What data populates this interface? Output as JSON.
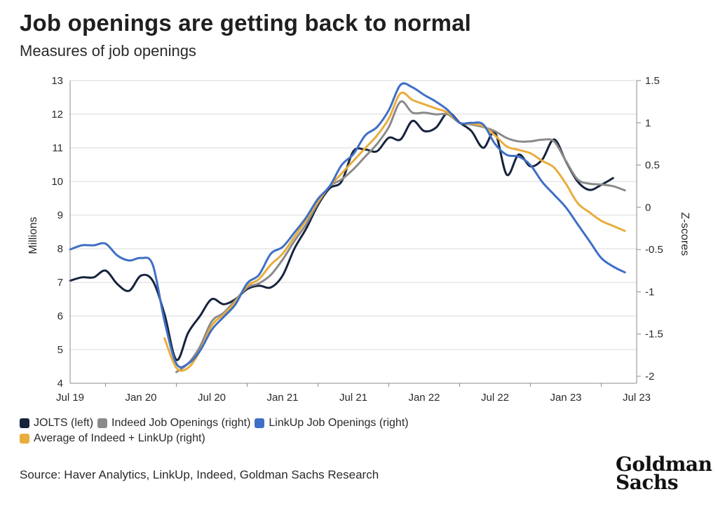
{
  "title": "Job openings are getting back to normal",
  "subtitle": "Measures of job openings",
  "source": "Source: Haver Analytics, LinkUp, Indeed, Goldman Sachs Research",
  "logo": {
    "line1": "Goldman",
    "line2": "Sachs"
  },
  "chart_data": {
    "type": "line",
    "title": "Job openings are getting back to normal",
    "subtitle": "Measures of job openings",
    "x_ticks": [
      "Jul 19",
      "Jan 20",
      "Jul 20",
      "Jan 21",
      "Jul 21",
      "Jan 22",
      "Jul 22",
      "Jan 23",
      "Jul 23"
    ],
    "ylabel_left": "Millions",
    "ylabel_right": "Z-scores",
    "ylim_left": [
      4,
      13
    ],
    "ylim_right": [
      -2.083,
      1.5
    ],
    "y_ticks_left": [
      "4",
      "5",
      "6",
      "7",
      "8",
      "9",
      "10",
      "11",
      "12",
      "13"
    ],
    "y_ticks_right": [
      "-2",
      "-1.5",
      "-1",
      "-0.5",
      "0",
      "0.5",
      "1",
      "1.5"
    ],
    "y_tick_values_right": [
      -2,
      -1.5,
      -1,
      -0.5,
      0,
      0.5,
      1,
      1.5
    ],
    "grid": "horizontal",
    "legend_position": "bottom",
    "series": [
      {
        "name": "JOLTS (left)",
        "axis": "left",
        "color": "#17233d",
        "points": [
          [
            "2019-07",
            7.05
          ],
          [
            "2019-08",
            7.15
          ],
          [
            "2019-09",
            7.15
          ],
          [
            "2019-10",
            7.35
          ],
          [
            "2019-11",
            6.95
          ],
          [
            "2019-12",
            6.75
          ],
          [
            "2020-01",
            7.2
          ],
          [
            "2020-02",
            7.05
          ],
          [
            "2020-03",
            6.05
          ],
          [
            "2020-04",
            4.7
          ],
          [
            "2020-05",
            5.5
          ],
          [
            "2020-06",
            6.0
          ],
          [
            "2020-07",
            6.5
          ],
          [
            "2020-08",
            6.35
          ],
          [
            "2020-09",
            6.5
          ],
          [
            "2020-10",
            6.8
          ],
          [
            "2020-11",
            6.9
          ],
          [
            "2020-12",
            6.85
          ],
          [
            "2021-01",
            7.2
          ],
          [
            "2021-02",
            8.0
          ],
          [
            "2021-03",
            8.6
          ],
          [
            "2021-04",
            9.3
          ],
          [
            "2021-05",
            9.8
          ],
          [
            "2021-06",
            10.0
          ],
          [
            "2021-07",
            10.9
          ],
          [
            "2021-08",
            10.95
          ],
          [
            "2021-09",
            10.9
          ],
          [
            "2021-10",
            11.3
          ],
          [
            "2021-11",
            11.25
          ],
          [
            "2021-12",
            11.8
          ],
          [
            "2022-01",
            11.5
          ],
          [
            "2022-02",
            11.6
          ],
          [
            "2022-03",
            12.05
          ],
          [
            "2022-04",
            11.75
          ],
          [
            "2022-05",
            11.5
          ],
          [
            "2022-06",
            11.0
          ],
          [
            "2022-07",
            11.45
          ],
          [
            "2022-08",
            10.2
          ],
          [
            "2022-09",
            10.8
          ],
          [
            "2022-10",
            10.45
          ],
          [
            "2022-11",
            10.65
          ],
          [
            "2022-12",
            11.25
          ],
          [
            "2023-01",
            10.6
          ],
          [
            "2023-02",
            10.0
          ],
          [
            "2023-03",
            9.75
          ],
          [
            "2023-04",
            9.9
          ],
          [
            "2023-05",
            10.1
          ]
        ]
      },
      {
        "name": "Indeed Job Openings (right)",
        "axis": "right",
        "color": "#8a8a8a",
        "points": [
          [
            "2020-04",
            -1.95
          ],
          [
            "2020-05",
            -1.85
          ],
          [
            "2020-06",
            -1.65
          ],
          [
            "2020-07",
            -1.35
          ],
          [
            "2020-08",
            -1.25
          ],
          [
            "2020-09",
            -1.1
          ],
          [
            "2020-10",
            -0.95
          ],
          [
            "2020-11",
            -0.9
          ],
          [
            "2020-12",
            -0.8
          ],
          [
            "2021-01",
            -0.62
          ],
          [
            "2021-02",
            -0.4
          ],
          [
            "2021-03",
            -0.2
          ],
          [
            "2021-04",
            0.05
          ],
          [
            "2021-05",
            0.25
          ],
          [
            "2021-06",
            0.33
          ],
          [
            "2021-07",
            0.45
          ],
          [
            "2021-08",
            0.6
          ],
          [
            "2021-09",
            0.75
          ],
          [
            "2021-10",
            0.95
          ],
          [
            "2021-11",
            1.25
          ],
          [
            "2021-12",
            1.12
          ],
          [
            "2022-01",
            1.12
          ],
          [
            "2022-02",
            1.1
          ],
          [
            "2022-03",
            1.1
          ],
          [
            "2022-04",
            1.0
          ],
          [
            "2022-05",
            0.98
          ],
          [
            "2022-06",
            0.95
          ],
          [
            "2022-07",
            0.9
          ],
          [
            "2022-08",
            0.82
          ],
          [
            "2022-09",
            0.78
          ],
          [
            "2022-10",
            0.78
          ],
          [
            "2022-11",
            0.8
          ],
          [
            "2022-12",
            0.78
          ],
          [
            "2023-01",
            0.55
          ],
          [
            "2023-02",
            0.33
          ],
          [
            "2023-03",
            0.28
          ],
          [
            "2023-04",
            0.27
          ],
          [
            "2023-05",
            0.25
          ],
          [
            "2023-06",
            0.2
          ]
        ]
      },
      {
        "name": "LinkUp Job Openings (right)",
        "axis": "right",
        "color": "#3f6fc6",
        "points": [
          [
            "2019-07",
            -0.5
          ],
          [
            "2019-08",
            -0.45
          ],
          [
            "2019-09",
            -0.45
          ],
          [
            "2019-10",
            -0.43
          ],
          [
            "2019-11",
            -0.57
          ],
          [
            "2019-12",
            -0.63
          ],
          [
            "2020-01",
            -0.6
          ],
          [
            "2020-02",
            -0.68
          ],
          [
            "2020-03",
            -1.35
          ],
          [
            "2020-04",
            -1.85
          ],
          [
            "2020-05",
            -1.85
          ],
          [
            "2020-06",
            -1.7
          ],
          [
            "2020-07",
            -1.45
          ],
          [
            "2020-08",
            -1.3
          ],
          [
            "2020-09",
            -1.15
          ],
          [
            "2020-10",
            -0.9
          ],
          [
            "2020-11",
            -0.8
          ],
          [
            "2020-12",
            -0.55
          ],
          [
            "2021-01",
            -0.47
          ],
          [
            "2021-02",
            -0.3
          ],
          [
            "2021-03",
            -0.12
          ],
          [
            "2021-04",
            0.1
          ],
          [
            "2021-05",
            0.25
          ],
          [
            "2021-06",
            0.5
          ],
          [
            "2021-07",
            0.63
          ],
          [
            "2021-08",
            0.85
          ],
          [
            "2021-09",
            0.95
          ],
          [
            "2021-10",
            1.15
          ],
          [
            "2021-11",
            1.45
          ],
          [
            "2021-12",
            1.42
          ],
          [
            "2022-01",
            1.33
          ],
          [
            "2022-02",
            1.25
          ],
          [
            "2022-03",
            1.15
          ],
          [
            "2022-04",
            1.0
          ],
          [
            "2022-05",
            1.0
          ],
          [
            "2022-06",
            0.98
          ],
          [
            "2022-07",
            0.75
          ],
          [
            "2022-08",
            0.62
          ],
          [
            "2022-09",
            0.6
          ],
          [
            "2022-10",
            0.5
          ],
          [
            "2022-11",
            0.3
          ],
          [
            "2022-12",
            0.15
          ],
          [
            "2023-01",
            0.0
          ],
          [
            "2023-02",
            -0.2
          ],
          [
            "2023-03",
            -0.4
          ],
          [
            "2023-04",
            -0.6
          ],
          [
            "2023-05",
            -0.7
          ],
          [
            "2023-06",
            -0.77
          ]
        ]
      },
      {
        "name": "Average of Indeed + LinkUp (right)",
        "axis": "right",
        "color": "#e8ad3c",
        "points": [
          [
            "2020-03",
            -1.55
          ],
          [
            "2020-04",
            -1.9
          ],
          [
            "2020-05",
            -1.9
          ],
          [
            "2020-06",
            -1.7
          ],
          [
            "2020-07",
            -1.4
          ],
          [
            "2020-08",
            -1.27
          ],
          [
            "2020-09",
            -1.12
          ],
          [
            "2020-10",
            -0.93
          ],
          [
            "2020-11",
            -0.85
          ],
          [
            "2020-12",
            -0.68
          ],
          [
            "2021-01",
            -0.55
          ],
          [
            "2021-02",
            -0.35
          ],
          [
            "2021-03",
            -0.15
          ],
          [
            "2021-04",
            0.07
          ],
          [
            "2021-05",
            0.25
          ],
          [
            "2021-06",
            0.4
          ],
          [
            "2021-07",
            0.55
          ],
          [
            "2021-08",
            0.7
          ],
          [
            "2021-09",
            0.85
          ],
          [
            "2021-10",
            1.05
          ],
          [
            "2021-11",
            1.35
          ],
          [
            "2021-12",
            1.27
          ],
          [
            "2022-01",
            1.22
          ],
          [
            "2022-02",
            1.17
          ],
          [
            "2022-03",
            1.12
          ],
          [
            "2022-04",
            1.0
          ],
          [
            "2022-05",
            0.99
          ],
          [
            "2022-06",
            0.96
          ],
          [
            "2022-07",
            0.85
          ],
          [
            "2022-08",
            0.72
          ],
          [
            "2022-09",
            0.68
          ],
          [
            "2022-10",
            0.64
          ],
          [
            "2022-11",
            0.55
          ],
          [
            "2022-12",
            0.47
          ],
          [
            "2023-01",
            0.28
          ],
          [
            "2023-02",
            0.05
          ],
          [
            "2023-03",
            -0.06
          ],
          [
            "2023-04",
            -0.16
          ],
          [
            "2023-05",
            -0.22
          ],
          [
            "2023-06",
            -0.28
          ]
        ]
      }
    ]
  }
}
